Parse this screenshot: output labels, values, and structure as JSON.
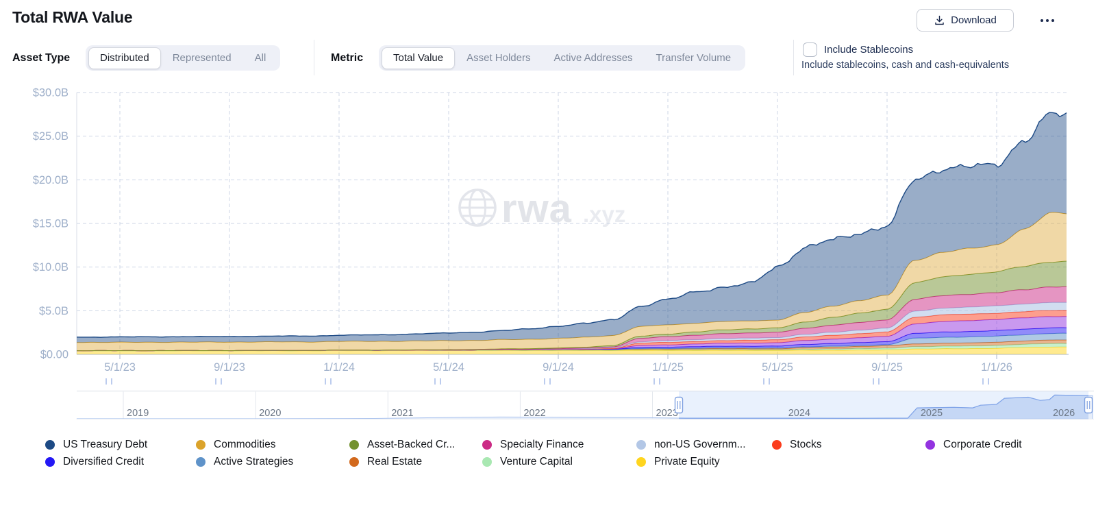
{
  "header": {
    "title": "Total RWA Value",
    "download_label": "Download",
    "more_icon": "ellipsis-icon"
  },
  "controls": {
    "asset_type": {
      "label": "Asset Type",
      "options": [
        "Distributed",
        "Represented",
        "All"
      ],
      "selected": "Distributed"
    },
    "metric": {
      "label": "Metric",
      "options": [
        "Total Value",
        "Asset Holders",
        "Active Addresses",
        "Transfer Volume"
      ],
      "selected": "Total Value"
    },
    "stablecoins": {
      "label": "Include Stablecoins",
      "description": "Include stablecoins, cash and cash-equivalents",
      "checked": false
    }
  },
  "watermark": {
    "text": "rwa",
    "suffix": ".xyz",
    "icon": "globe-icon"
  },
  "chart_data": {
    "type": "area",
    "stacked": true,
    "unit": "USD billions",
    "ylim": [
      0,
      30
    ],
    "grid": true,
    "y_tick_labels": [
      "$30.0B",
      "$25.0B",
      "$20.0B",
      "$15.0B",
      "$10.0B",
      "$5.0B",
      "$0.00"
    ],
    "x_tick_labels": [
      "5/1/23",
      "9/1/23",
      "1/1/24",
      "5/1/24",
      "9/1/24",
      "1/1/25",
      "5/1/25",
      "9/1/25",
      "1/1/26"
    ],
    "start_month": "2023-04",
    "end_month": "2026-03",
    "interval": "monthly",
    "series_note": "values in $B, arrays are monthly 2023-04 .. 2026-03, listed bottom of stack to top",
    "series": [
      {
        "name": "Private Equity",
        "color": "#ffd51f",
        "values": [
          0.4,
          0.4,
          0.4,
          0.41,
          0.41,
          0.41,
          0.42,
          0.42,
          0.42,
          0.43,
          0.43,
          0.43,
          0.44,
          0.44,
          0.44,
          0.45,
          0.45,
          0.45,
          0.45,
          0.45,
          0.46,
          0.45,
          0.45,
          0.46,
          0.46,
          0.45,
          0.47,
          0.48,
          0.49,
          0.5,
          0.62,
          0.64,
          0.66,
          0.7,
          0.78,
          0.85
        ]
      },
      {
        "name": "Venture Capital",
        "color": "#a9e8b2",
        "values": [
          0.01,
          0.01,
          0.01,
          0.01,
          0.01,
          0.01,
          0.01,
          0.01,
          0.01,
          0.02,
          0.02,
          0.02,
          0.02,
          0.02,
          0.02,
          0.03,
          0.03,
          0.03,
          0.04,
          0.04,
          0.06,
          0.07,
          0.08,
          0.08,
          0.08,
          0.08,
          0.12,
          0.15,
          0.18,
          0.2,
          0.26,
          0.28,
          0.3,
          0.33,
          0.36,
          0.4
        ]
      },
      {
        "name": "Real Estate",
        "color": "#d2691d",
        "values": [
          0.02,
          0.02,
          0.02,
          0.02,
          0.02,
          0.02,
          0.02,
          0.02,
          0.02,
          0.03,
          0.03,
          0.03,
          0.03,
          0.04,
          0.04,
          0.05,
          0.05,
          0.06,
          0.06,
          0.07,
          0.1,
          0.11,
          0.12,
          0.12,
          0.12,
          0.12,
          0.16,
          0.2,
          0.24,
          0.28,
          0.32,
          0.34,
          0.35,
          0.37,
          0.38,
          0.4
        ]
      },
      {
        "name": "Active Strategies",
        "color": "#5f93c9",
        "values": [
          0,
          0,
          0,
          0,
          0,
          0,
          0,
          0,
          0,
          0,
          0,
          0,
          0,
          0,
          0,
          0,
          0,
          0,
          0,
          0.01,
          0.05,
          0.05,
          0.06,
          0.07,
          0.07,
          0.08,
          0.1,
          0.11,
          0.11,
          0.12,
          0.65,
          0.68,
          0.69,
          0.7,
          0.72,
          0.75
        ]
      },
      {
        "name": "Diversified Credit",
        "color": "#2317f5",
        "values": [
          0,
          0,
          0,
          0,
          0,
          0,
          0,
          0,
          0,
          0,
          0,
          0,
          0,
          0,
          0,
          0,
          0,
          0.01,
          0.02,
          0.03,
          0.12,
          0.15,
          0.18,
          0.2,
          0.21,
          0.22,
          0.28,
          0.31,
          0.33,
          0.35,
          0.55,
          0.6,
          0.62,
          0.63,
          0.64,
          0.65
        ]
      },
      {
        "name": "Corporate Credit",
        "color": "#9333e0",
        "values": [
          0,
          0,
          0,
          0,
          0,
          0,
          0,
          0,
          0,
          0,
          0,
          0,
          0,
          0,
          0,
          0,
          0.01,
          0.01,
          0.02,
          0.04,
          0.22,
          0.25,
          0.3,
          0.34,
          0.36,
          0.38,
          0.45,
          0.5,
          0.55,
          0.6,
          1.1,
          1.2,
          1.25,
          1.28,
          1.29,
          1.3
        ]
      },
      {
        "name": "Stocks",
        "color": "#fb3d1d",
        "values": [
          0,
          0,
          0,
          0,
          0,
          0,
          0,
          0,
          0,
          0,
          0,
          0,
          0,
          0,
          0,
          0.01,
          0.01,
          0.02,
          0.03,
          0.05,
          0.28,
          0.3,
          0.28,
          0.3,
          0.32,
          0.35,
          0.4,
          0.44,
          0.47,
          0.5,
          0.75,
          0.78,
          0.74,
          0.72,
          0.71,
          0.7
        ]
      },
      {
        "name": "non-US Governm...",
        "color": "#b3c7e6",
        "values": [
          0,
          0,
          0,
          0,
          0,
          0,
          0,
          0,
          0,
          0,
          0,
          0,
          0,
          0.01,
          0.01,
          0.02,
          0.02,
          0.03,
          0.05,
          0.08,
          0.15,
          0.2,
          0.22,
          0.24,
          0.25,
          0.25,
          0.3,
          0.35,
          0.4,
          0.45,
          0.7,
          0.75,
          0.8,
          0.85,
          0.88,
          0.9
        ]
      },
      {
        "name": "Specialty Finance",
        "color": "#cb2b85",
        "values": [
          0,
          0,
          0,
          0,
          0,
          0,
          0,
          0,
          0,
          0,
          0,
          0,
          0.01,
          0.01,
          0.02,
          0.02,
          0.03,
          0.04,
          0.06,
          0.1,
          0.4,
          0.45,
          0.5,
          0.55,
          0.58,
          0.6,
          0.7,
          0.8,
          0.88,
          0.95,
          1.35,
          1.45,
          1.48,
          1.5,
          1.65,
          1.8
        ]
      },
      {
        "name": "Asset-Backed Cr...",
        "color": "#73912f",
        "values": [
          0,
          0,
          0,
          0,
          0,
          0,
          0,
          0,
          0,
          0.01,
          0.01,
          0.02,
          0.02,
          0.03,
          0.04,
          0.05,
          0.06,
          0.08,
          0.1,
          0.15,
          0.25,
          0.3,
          0.38,
          0.44,
          0.47,
          0.5,
          0.7,
          0.9,
          1.05,
          1.2,
          1.9,
          2.1,
          2.3,
          2.4,
          2.65,
          2.9
        ]
      },
      {
        "name": "Commodities",
        "color": "#dba32b",
        "values": [
          0.95,
          0.95,
          0.96,
          0.96,
          0.96,
          0.97,
          0.97,
          0.98,
          0.98,
          0.99,
          1.0,
          1.0,
          1.01,
          1.02,
          1.03,
          1.05,
          1.07,
          1.1,
          1.12,
          1.15,
          1.1,
          1.05,
          1.0,
          0.95,
          0.92,
          0.9,
          1.1,
          1.3,
          1.45,
          1.6,
          2.6,
          2.8,
          2.95,
          3.1,
          4.2,
          5.6
        ]
      },
      {
        "name": "US Treasury Debt",
        "color": "#1d4a85",
        "values": [
          0.6,
          0.61,
          0.62,
          0.62,
          0.63,
          0.64,
          0.65,
          0.66,
          0.68,
          0.7,
          0.73,
          0.77,
          0.82,
          0.88,
          0.95,
          1.05,
          1.2,
          1.4,
          1.6,
          1.8,
          2.3,
          2.9,
          3.6,
          3.9,
          4.3,
          6.1,
          7.4,
          7.6,
          7.75,
          7.9,
          9.2,
          9.6,
          9.4,
          9.2,
          10.2,
          11.3
        ]
      }
    ]
  },
  "legend": {
    "rows": [
      [
        "US Treasury Debt",
        "Commodities",
        "Asset-Backed Cr...",
        "Specialty Finance",
        "non-US Governm...",
        "Stocks",
        "Corporate Credit"
      ],
      [
        "Diversified Credit",
        "Active Strategies",
        "Real Estate",
        "Venture Capital",
        "Private Equity"
      ]
    ]
  },
  "navigator": {
    "years": [
      "2019",
      "2020",
      "2021",
      "2022",
      "2023",
      "2024",
      "2025",
      "2026"
    ],
    "selected_range_years_approx": [
      2023.2,
      2026.3
    ],
    "profile_note": "normalized height of mini total-value area, [year, 0..1]",
    "profile": [
      [
        2018.65,
        0.015
      ],
      [
        2020.3,
        0.018
      ],
      [
        2020.9,
        0.025
      ],
      [
        2021.35,
        0.055
      ],
      [
        2021.85,
        0.08
      ],
      [
        2022.15,
        0.075
      ],
      [
        2022.6,
        0.058
      ],
      [
        2023.0,
        0.05
      ],
      [
        2023.25,
        0.035
      ],
      [
        2023.9,
        0.035
      ],
      [
        2024.5,
        0.03
      ],
      [
        2024.93,
        0.038
      ],
      [
        2025.0,
        0.42
      ],
      [
        2025.28,
        0.44
      ],
      [
        2025.42,
        0.42
      ],
      [
        2025.48,
        0.52
      ],
      [
        2025.6,
        0.55
      ],
      [
        2025.66,
        0.78
      ],
      [
        2025.84,
        0.82
      ],
      [
        2025.93,
        0.7
      ],
      [
        2026.0,
        0.73
      ],
      [
        2026.04,
        0.9
      ],
      [
        2026.33,
        0.88
      ]
    ]
  }
}
